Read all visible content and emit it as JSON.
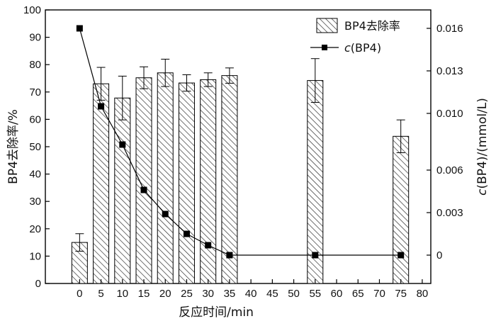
{
  "chart_data": {
    "type": "bar",
    "title": "",
    "xlabel": "反应时间/min",
    "ylabel": "BP4去除率/%",
    "y2label": "c(BP4)/(mmol/L)",
    "y2label_italic_part": "c",
    "y2label_rest": "(BP4)/(mmol/L)",
    "xlim": [
      -8,
      82
    ],
    "ylim": [
      0,
      100
    ],
    "y2lim": [
      -0.002,
      0.0173
    ],
    "x_ticks": [
      0,
      5,
      10,
      15,
      20,
      25,
      30,
      35,
      40,
      45,
      50,
      55,
      60,
      65,
      70,
      75,
      80
    ],
    "y_ticks": [
      0,
      10,
      20,
      30,
      40,
      50,
      60,
      70,
      80,
      90,
      100
    ],
    "y2_ticks": [
      0,
      0.003,
      0.006,
      0.01,
      0.013,
      0.016
    ],
    "y2_tick_labels": [
      "0",
      "0.003",
      "0.006",
      "0.010",
      "0.013",
      "0.016"
    ],
    "legend_placement": "top-right",
    "series": [
      {
        "name": "BP4去除率",
        "kind": "bar",
        "hatch": "diagonal",
        "x": [
          0,
          5,
          10,
          15,
          20,
          25,
          30,
          35,
          55,
          75
        ],
        "values": [
          15.0,
          73.0,
          67.8,
          75.2,
          77.0,
          73.3,
          74.5,
          76.0,
          74.2,
          53.8
        ],
        "error": [
          3.2,
          6.0,
          8.0,
          4.0,
          5.0,
          3.0,
          2.5,
          2.8,
          8.0,
          6.0
        ]
      },
      {
        "name": "c(BP4)",
        "name_italic_part": "c",
        "name_rest": "(BP4)",
        "kind": "line",
        "marker": "square",
        "axis": "right",
        "x": [
          0,
          5,
          10,
          15,
          20,
          25,
          30,
          35,
          55,
          75
        ],
        "values": [
          0.016,
          0.0105,
          0.0078,
          0.0046,
          0.0029,
          0.0015,
          0.0007,
          0.0,
          0.0,
          0.0
        ]
      }
    ],
    "colors": {
      "axis": "#000000",
      "bar_fill": "#ffffff",
      "hatch": "#222222",
      "line": "#000000",
      "marker": "#000000"
    }
  }
}
